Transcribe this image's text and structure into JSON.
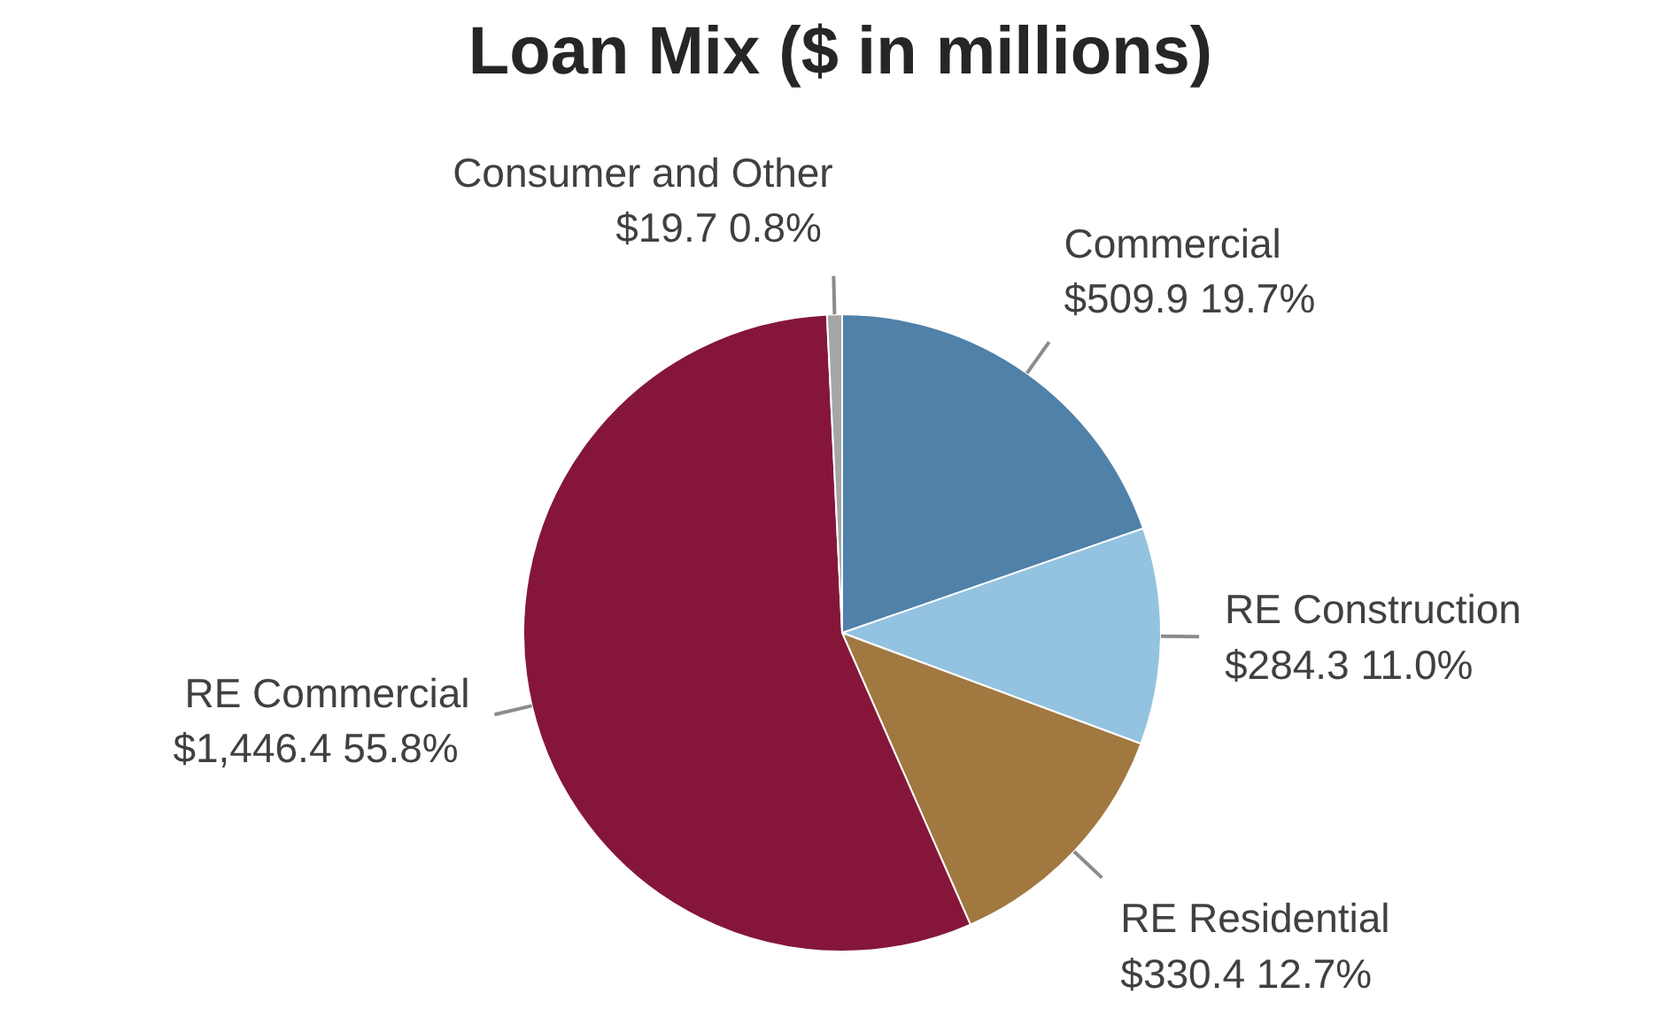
{
  "chart_data": {
    "type": "pie",
    "title": "Loan Mix ($ in millions)",
    "categories": [
      "Commercial",
      "RE Construction",
      "RE Residential",
      "RE Commercial",
      "Consumer and Other"
    ],
    "values": [
      509.9,
      284.3,
      330.4,
      1446.4,
      19.7
    ],
    "value_labels": [
      "$509.9  19.7%",
      "$284.3  11.0%",
      "$330.4  12.7%",
      "$1,446.4  55.8%",
      "$19.7  0.8%"
    ],
    "colors": [
      "#4f81a9",
      "#93c3e0",
      "#a07840",
      "#85163a",
      "#a6a6a6"
    ]
  }
}
